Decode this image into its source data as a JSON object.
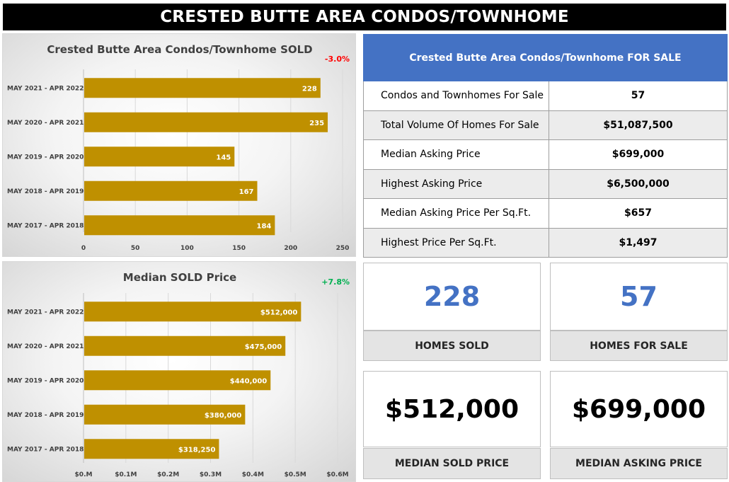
{
  "page_title": "CRESTED BUTTE AREA CONDOS/TOWNHOME",
  "chart_data": [
    {
      "type": "bar",
      "orientation": "horizontal",
      "title": "Crested Butte Area Condos/Townhome SOLD",
      "change_label": "-3.0%",
      "change_color": "#ff0000",
      "categories": [
        "MAY 2021 - APR 2022",
        "MAY 2020 - APR 2021",
        "MAY 2019 - APR 2020",
        "MAY 2018 - APR 2019",
        "MAY 2017 - APR 2018"
      ],
      "values": [
        228,
        235,
        145,
        167,
        184
      ],
      "value_labels": [
        "228",
        "235",
        "145",
        "167",
        "184"
      ],
      "xlim": [
        0,
        250
      ],
      "ticks": [
        0,
        50,
        100,
        150,
        200,
        250
      ],
      "tick_labels": [
        "0",
        "50",
        "100",
        "150",
        "200",
        "250"
      ],
      "bar_color": "#bf9000"
    },
    {
      "type": "bar",
      "orientation": "horizontal",
      "title": "Median SOLD Price",
      "change_label": "+7.8%",
      "change_color": "#00b050",
      "categories": [
        "MAY 2021 - APR 2022",
        "MAY 2020 - APR 2021",
        "MAY 2019 - APR 2020",
        "MAY 2018 - APR 2019",
        "MAY 2017 - APR 2018"
      ],
      "values": [
        512000,
        475000,
        440000,
        380000,
        318250
      ],
      "value_labels": [
        "$512,000",
        "$475,000",
        "$440,000",
        "$380,000",
        "$318,250"
      ],
      "xlim": [
        0,
        600000
      ],
      "ticks": [
        0,
        100000,
        200000,
        300000,
        400000,
        500000,
        600000
      ],
      "tick_labels": [
        "$0.M",
        "$0.1M",
        "$0.2M",
        "$0.3M",
        "$0.4M",
        "$0.5M",
        "$0.6M"
      ],
      "bar_color": "#bf9000"
    }
  ],
  "for_sale_table": {
    "header": "Crested Butte Area Condos/Townhome FOR SALE",
    "rows": [
      {
        "label": "Condos and Townhomes For Sale",
        "value": "57"
      },
      {
        "label": "Total Volume Of Homes For Sale",
        "value": "$51,087,500"
      },
      {
        "label": "Median Asking Price",
        "value": "$699,000"
      },
      {
        "label": "Highest Asking Price",
        "value": "$6,500,000"
      },
      {
        "label": "Median Asking Price Per Sq.Ft.",
        "value": "$657"
      },
      {
        "label": "Highest Price Per Sq.Ft.",
        "value": "$1,497"
      }
    ]
  },
  "kpis": {
    "homes_sold": {
      "value": "228",
      "label": "HOMES SOLD"
    },
    "homes_for_sale": {
      "value": "57",
      "label": "HOMES FOR SALE"
    },
    "median_sold_price": {
      "value": "$512,000",
      "label": "MEDIAN SOLD PRICE"
    },
    "median_asking_price": {
      "value": "$699,000",
      "label": "MEDIAN ASKING PRICE"
    }
  },
  "colors": {
    "accent_blue": "#4472c4",
    "bar_gold": "#bf9000",
    "negative": "#ff0000",
    "positive": "#00b050"
  }
}
